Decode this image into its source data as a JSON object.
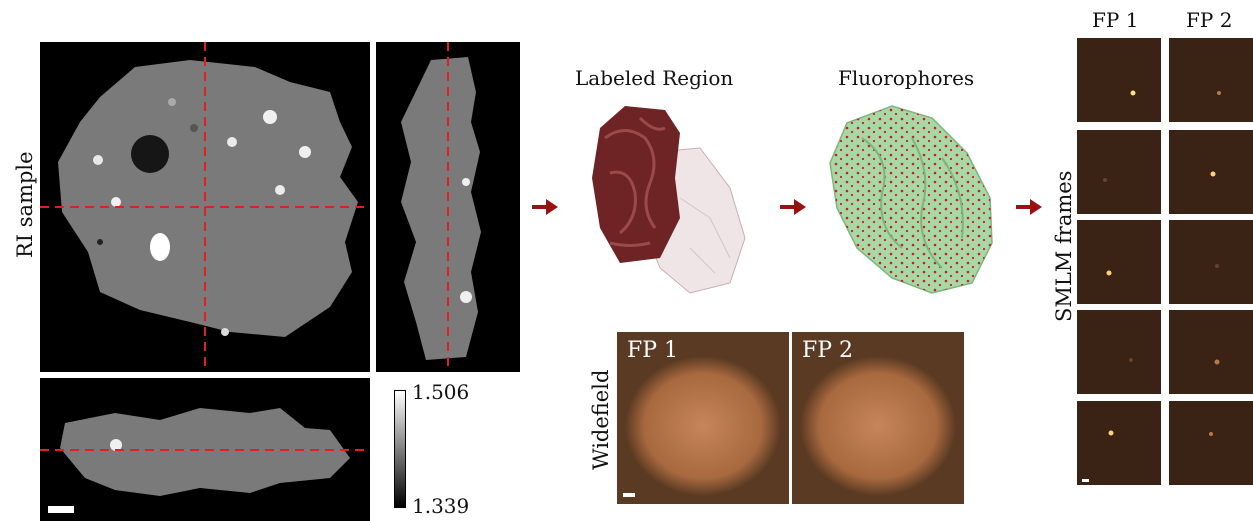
{
  "ri_sample": {
    "label": "RI sample"
  },
  "colorbar": {
    "max_label": "1.506",
    "min_label": "1.339"
  },
  "labeled_region": {
    "title": "Labeled Region"
  },
  "fluorophores": {
    "title": "Fluorophores"
  },
  "widefield": {
    "label": "Widefield",
    "panels": [
      "FP 1",
      "FP 2"
    ]
  },
  "smlm": {
    "label": "SMLM frames",
    "columns": [
      "FP 1",
      "FP 2"
    ]
  },
  "colors": {
    "arrow": "#9b1111",
    "crosshair": "#e02020",
    "mesh": "#7a2a2a",
    "fluor_mesh": "#9fd3a0"
  }
}
